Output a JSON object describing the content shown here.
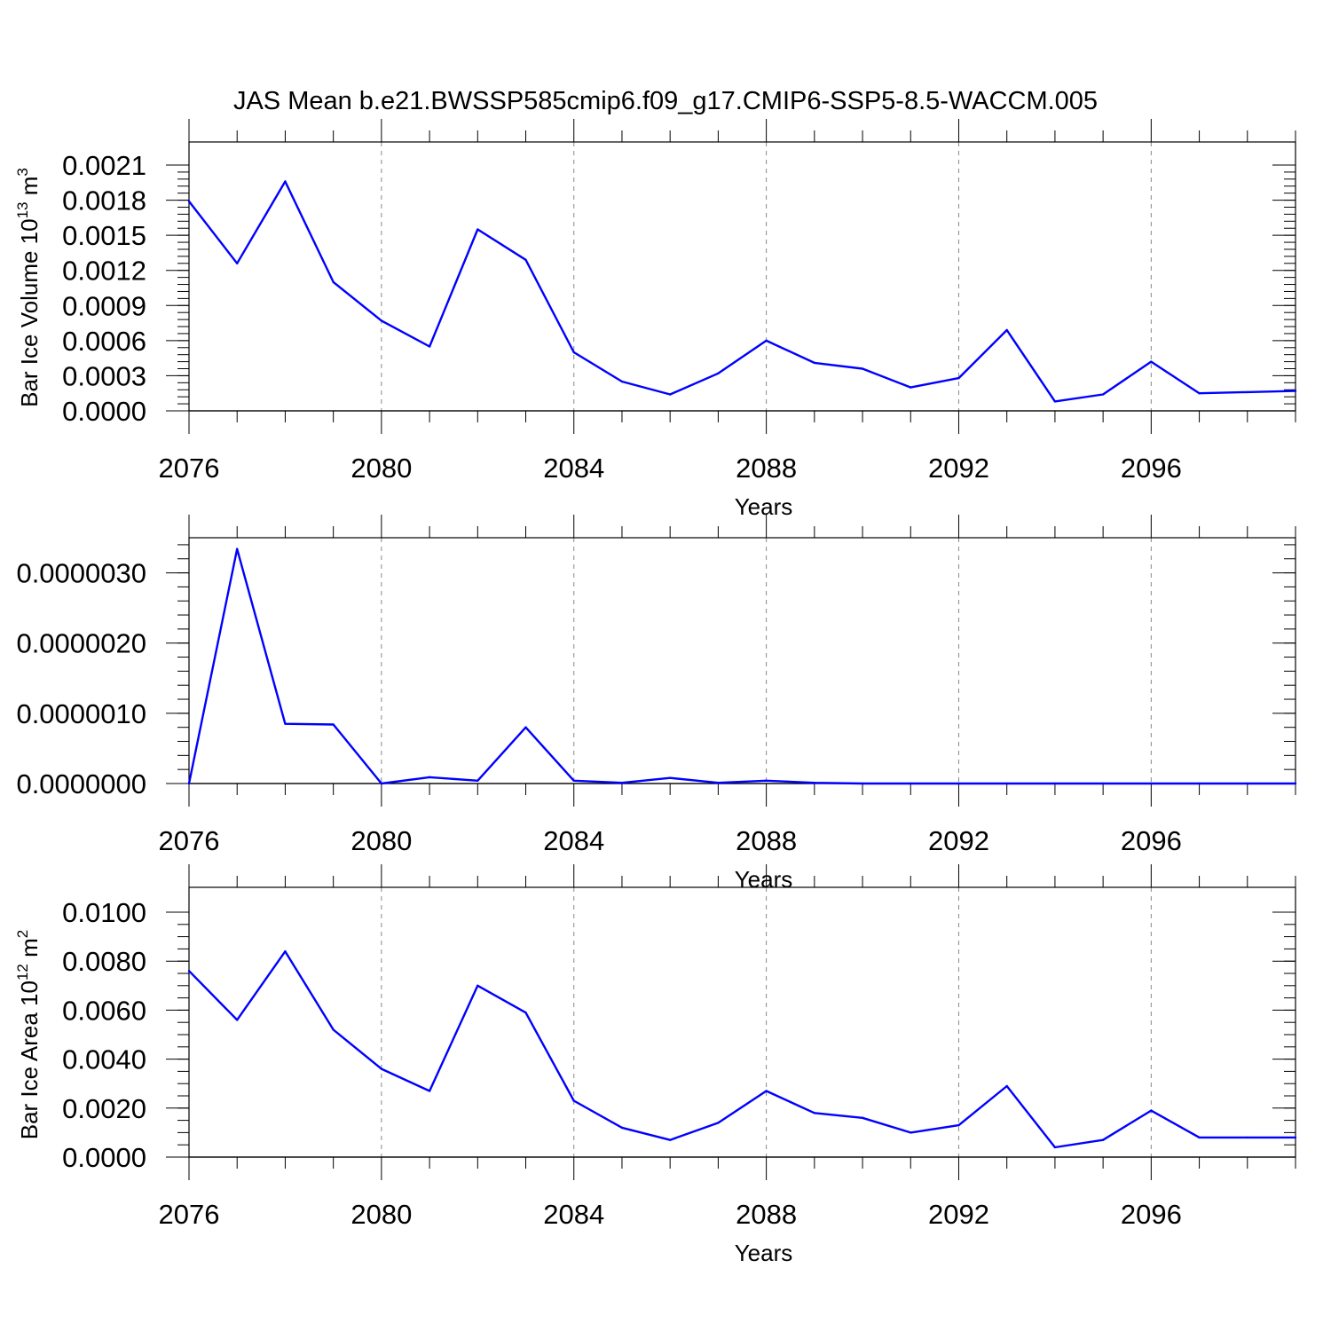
{
  "figure": {
    "title": "JAS Mean b.e21.BWSSP585cmip6.f09_g17.CMIP6-SSP5-8.5-WACCM.005"
  },
  "chart_data": [
    {
      "type": "line",
      "title": "JAS Mean b.e21.BWSSP585cmip6.f09_g17.CMIP6-SSP5-8.5-WACCM.005",
      "xlabel": "Years",
      "ylabel": "Bar Ice Volume 10",
      "ylabel_exp": "13",
      "ylabel_unit": " m",
      "ylabel_unit_exp": "3",
      "xlim": [
        2076,
        2099
      ],
      "ylim": [
        0,
        0.0021
      ],
      "xticks": [
        2076,
        2080,
        2084,
        2088,
        2092,
        2096
      ],
      "yticks": [
        "0.0000",
        "0.0003",
        "0.0006",
        "0.0009",
        "0.0012",
        "0.0015",
        "0.0018",
        "0.0021"
      ],
      "ytick_values": [
        0,
        0.0003,
        0.0006,
        0.0009,
        0.0012,
        0.0015,
        0.0018,
        0.0021
      ],
      "line_color": "#0000ff",
      "grid_color": "#888888",
      "x": [
        2076,
        2077,
        2078,
        2079,
        2080,
        2081,
        2082,
        2083,
        2084,
        2085,
        2086,
        2087,
        2088,
        2089,
        2090,
        2091,
        2092,
        2093,
        2094,
        2095,
        2096,
        2097,
        2098,
        2099
      ],
      "series": [
        {
          "values": [
            0.00179,
            0.00126,
            0.00196,
            0.0011,
            0.00077,
            0.00055,
            0.00155,
            0.00129,
            0.0005,
            0.00025,
            0.00014,
            0.00032,
            0.0006,
            0.00041,
            0.00036,
            0.0002,
            0.00028,
            0.00069,
            8e-05,
            0.00014,
            0.00042,
            0.00015,
            0.00016,
            0.00017
          ]
        }
      ]
    },
    {
      "type": "line",
      "xlabel": "Years",
      "ylabel": "",
      "xlim": [
        2076,
        2099
      ],
      "ylim": [
        0,
        3.5e-06
      ],
      "xticks": [
        2076,
        2080,
        2084,
        2088,
        2092,
        2096
      ],
      "yticks": [
        "0.0000000",
        "0.0000010",
        "0.0000020",
        "0.0000030"
      ],
      "ytick_values": [
        0,
        1e-06,
        2e-06,
        3e-06
      ],
      "line_color": "#0000ff",
      "grid_color": "#888888",
      "x": [
        2076,
        2077,
        2078,
        2079,
        2080,
        2081,
        2082,
        2083,
        2084,
        2085,
        2086,
        2087,
        2088,
        2089,
        2090,
        2091,
        2092,
        2093,
        2094,
        2095,
        2096,
        2097,
        2098,
        2099
      ],
      "series": [
        {
          "values": [
            0.0,
            3.34e-06,
            8.5e-07,
            8.4e-07,
            0.0,
            9e-08,
            4e-08,
            8e-07,
            4e-08,
            1e-08,
            8e-08,
            1e-08,
            4e-08,
            1e-08,
            0.0,
            0.0,
            0.0,
            0.0,
            0.0,
            0.0,
            0.0,
            0.0,
            0.0,
            0.0
          ]
        }
      ]
    },
    {
      "type": "line",
      "xlabel": "Years",
      "ylabel": "Bar Ice Area 10",
      "ylabel_exp": "12",
      "ylabel_unit": " m",
      "ylabel_unit_exp": "2",
      "xlim": [
        2076,
        2099
      ],
      "ylim": [
        0,
        0.01
      ],
      "xticks": [
        2076,
        2080,
        2084,
        2088,
        2092,
        2096
      ],
      "yticks": [
        "0.0000",
        "0.0020",
        "0.0040",
        "0.0060",
        "0.0080",
        "0.0100"
      ],
      "ytick_values": [
        0,
        0.002,
        0.004,
        0.006,
        0.008,
        0.01
      ],
      "line_color": "#0000ff",
      "grid_color": "#888888",
      "x": [
        2076,
        2077,
        2078,
        2079,
        2080,
        2081,
        2082,
        2083,
        2084,
        2085,
        2086,
        2087,
        2088,
        2089,
        2090,
        2091,
        2092,
        2093,
        2094,
        2095,
        2096,
        2097,
        2098,
        2099
      ],
      "series": [
        {
          "values": [
            0.0076,
            0.0056,
            0.0084,
            0.0052,
            0.0036,
            0.0027,
            0.007,
            0.0059,
            0.0023,
            0.0012,
            0.0007,
            0.0014,
            0.0027,
            0.0018,
            0.0016,
            0.001,
            0.0013,
            0.0029,
            0.0004,
            0.0007,
            0.0019,
            0.0008,
            0.0008,
            0.0008
          ]
        }
      ]
    }
  ]
}
